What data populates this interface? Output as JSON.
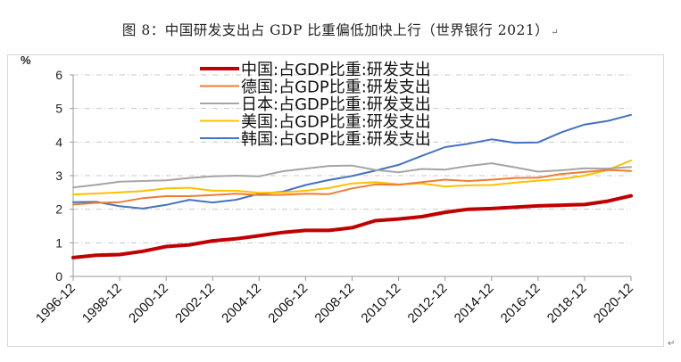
{
  "title": "图 8：中国研发支出占 GDP 比重偏低加快上行（世界银行 2021）",
  "return_mark": "↵",
  "end_mark": "↵",
  "chart_data": {
    "type": "line",
    "title": "图 8：中国研发支出占 GDP 比重偏低加快上行（世界银行 2021）",
    "ylabel": "%",
    "xlabel": "",
    "ylim": [
      0,
      6
    ],
    "yticks": [
      "0",
      "1",
      "2",
      "3",
      "4",
      "5",
      "6"
    ],
    "grid": true,
    "legend_position": "top-center",
    "x": [
      "1996-12",
      "1997-12",
      "1998-12",
      "1999-12",
      "2000-12",
      "2001-12",
      "2002-12",
      "2003-12",
      "2004-12",
      "2005-12",
      "2006-12",
      "2007-12",
      "2008-12",
      "2009-12",
      "2010-12",
      "2011-12",
      "2012-12",
      "2013-12",
      "2014-12",
      "2015-12",
      "2016-12",
      "2017-12",
      "2018-12",
      "2019-12",
      "2020-12"
    ],
    "xticks": [
      "1996-12",
      "1998-12",
      "2000-12",
      "2002-12",
      "2004-12",
      "2006-12",
      "2008-12",
      "2010-12",
      "2012-12",
      "2014-12",
      "2016-12",
      "2018-12",
      "2020-12"
    ],
    "series": [
      {
        "name": "中国:占GDP比重:研发支出",
        "color": "#c00000",
        "width": 4,
        "values": [
          0.56,
          0.63,
          0.65,
          0.75,
          0.89,
          0.94,
          1.06,
          1.12,
          1.21,
          1.31,
          1.37,
          1.37,
          1.45,
          1.66,
          1.71,
          1.78,
          1.91,
          2.0,
          2.02,
          2.06,
          2.1,
          2.12,
          2.14,
          2.24,
          2.4
        ]
      },
      {
        "name": "德国:占GDP比重:研发支出",
        "color": "#ed7d31",
        "width": 2,
        "values": [
          2.14,
          2.19,
          2.21,
          2.33,
          2.39,
          2.39,
          2.42,
          2.46,
          2.42,
          2.43,
          2.46,
          2.45,
          2.62,
          2.74,
          2.73,
          2.81,
          2.88,
          2.84,
          2.88,
          2.93,
          2.94,
          3.05,
          3.11,
          3.17,
          3.14
        ]
      },
      {
        "name": "日本:占GDP比重:研发支出",
        "color": "#a5a5a5",
        "width": 2,
        "values": [
          2.65,
          2.73,
          2.82,
          2.84,
          2.86,
          2.93,
          2.98,
          3.0,
          2.98,
          3.13,
          3.21,
          3.29,
          3.3,
          3.17,
          3.1,
          3.2,
          3.18,
          3.29,
          3.37,
          3.25,
          3.12,
          3.16,
          3.22,
          3.21,
          3.26
        ]
      },
      {
        "name": "美国:占GDP比重:研发支出",
        "color": "#ffc000",
        "width": 2,
        "values": [
          2.44,
          2.47,
          2.5,
          2.54,
          2.62,
          2.64,
          2.55,
          2.55,
          2.49,
          2.5,
          2.55,
          2.63,
          2.77,
          2.81,
          2.74,
          2.77,
          2.68,
          2.71,
          2.72,
          2.79,
          2.85,
          2.9,
          3.0,
          3.17,
          3.45
        ]
      },
      {
        "name": "韩国:占GDP比重:研发支出",
        "color": "#4472c4",
        "width": 2,
        "values": [
          2.21,
          2.22,
          2.09,
          2.02,
          2.13,
          2.28,
          2.2,
          2.28,
          2.46,
          2.52,
          2.72,
          2.87,
          2.99,
          3.15,
          3.32,
          3.59,
          3.85,
          3.95,
          4.08,
          3.98,
          3.99,
          4.29,
          4.52,
          4.63,
          4.81
        ]
      }
    ]
  }
}
